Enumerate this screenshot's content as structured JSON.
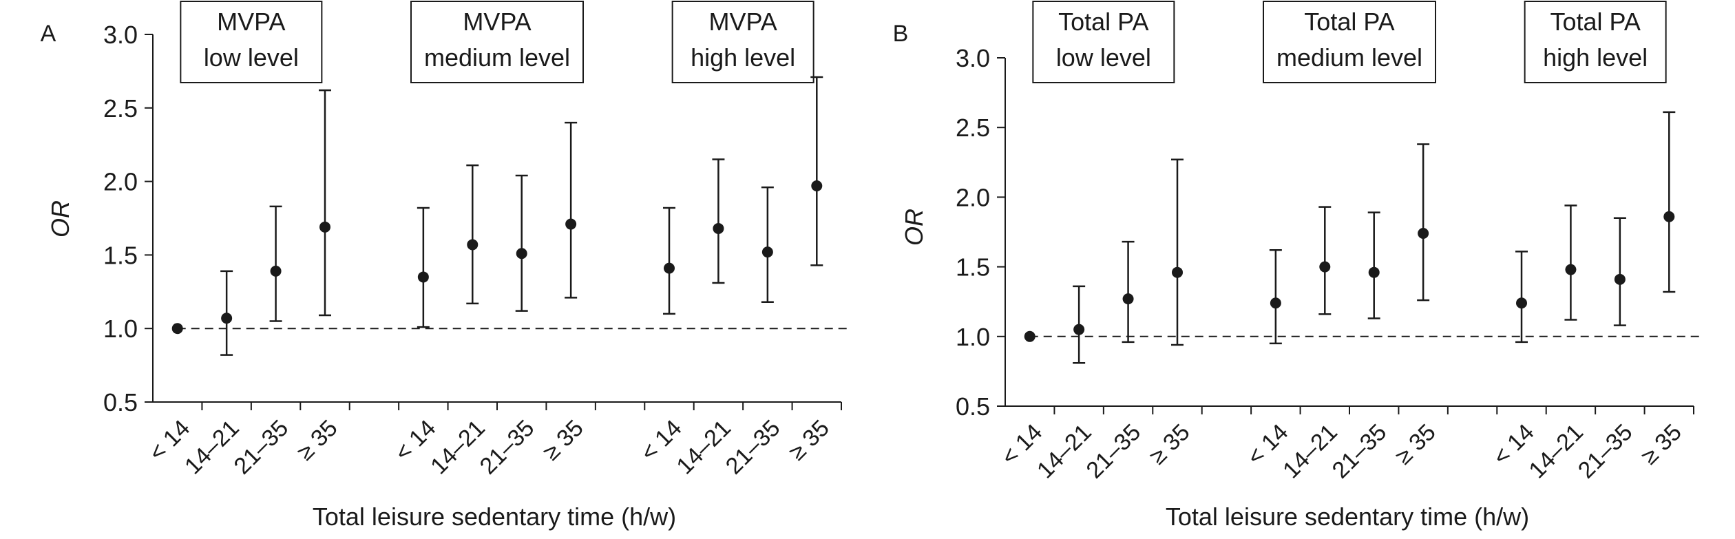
{
  "chart_data": [
    {
      "type": "scatter",
      "panel_label": "A",
      "ylabel": "OR",
      "xlabel": "Total leisure sedentary time (h/w)",
      "ylim": [
        0.5,
        3.0
      ],
      "yticks": [
        "0.5",
        "1.0",
        "1.5",
        "2.0",
        "2.5",
        "3.0"
      ],
      "reference_line": 1.0,
      "groups": [
        {
          "label_lines": [
            "MVPA",
            "low level"
          ],
          "categories": [
            "< 14",
            "14–21",
            "21–35",
            "≥ 35"
          ],
          "or": [
            1.0,
            1.07,
            1.39,
            1.69
          ],
          "lower": [
            null,
            0.82,
            1.05,
            1.09
          ],
          "upper": [
            null,
            1.39,
            1.83,
            2.62
          ]
        },
        {
          "label_lines": [
            "MVPA",
            "medium level"
          ],
          "categories": [
            "< 14",
            "14–21",
            "21–35",
            "≥ 35"
          ],
          "or": [
            1.35,
            1.57,
            1.51,
            1.71
          ],
          "lower": [
            1.01,
            1.17,
            1.12,
            1.21
          ],
          "upper": [
            1.82,
            2.11,
            2.04,
            2.4
          ]
        },
        {
          "label_lines": [
            "MVPA",
            "high level"
          ],
          "categories": [
            "< 14",
            "14–21",
            "21–35",
            "≥ 35"
          ],
          "or": [
            1.41,
            1.68,
            1.52,
            1.97
          ],
          "lower": [
            1.1,
            1.31,
            1.18,
            1.43
          ],
          "upper": [
            1.82,
            2.15,
            1.96,
            2.71
          ]
        }
      ]
    },
    {
      "type": "scatter",
      "panel_label": "B",
      "ylabel": "OR",
      "xlabel": "Total leisure sedentary time (h/w)",
      "ylim": [
        0.5,
        3.0
      ],
      "yticks": [
        "0.5",
        "1.0",
        "1.5",
        "2.0",
        "2.5",
        "3.0"
      ],
      "reference_line": 1.0,
      "groups": [
        {
          "label_lines": [
            "Total PA",
            "low level"
          ],
          "categories": [
            "< 14",
            "14–21",
            "21–35",
            "≥ 35"
          ],
          "or": [
            1.0,
            1.05,
            1.27,
            1.46
          ],
          "lower": [
            null,
            0.81,
            0.96,
            0.94
          ],
          "upper": [
            null,
            1.36,
            1.68,
            2.27
          ]
        },
        {
          "label_lines": [
            "Total PA",
            "medium level"
          ],
          "categories": [
            "< 14",
            "14–21",
            "21–35",
            "≥ 35"
          ],
          "or": [
            1.24,
            1.5,
            1.46,
            1.74
          ],
          "lower": [
            0.95,
            1.16,
            1.13,
            1.26
          ],
          "upper": [
            1.62,
            1.93,
            1.89,
            2.38
          ]
        },
        {
          "label_lines": [
            "Total PA",
            "high level"
          ],
          "categories": [
            "< 14",
            "14–21",
            "21–35",
            "≥ 35"
          ],
          "or": [
            1.24,
            1.48,
            1.41,
            1.86
          ],
          "lower": [
            0.96,
            1.12,
            1.08,
            1.32
          ],
          "upper": [
            1.61,
            1.94,
            1.85,
            2.61
          ]
        }
      ]
    }
  ]
}
